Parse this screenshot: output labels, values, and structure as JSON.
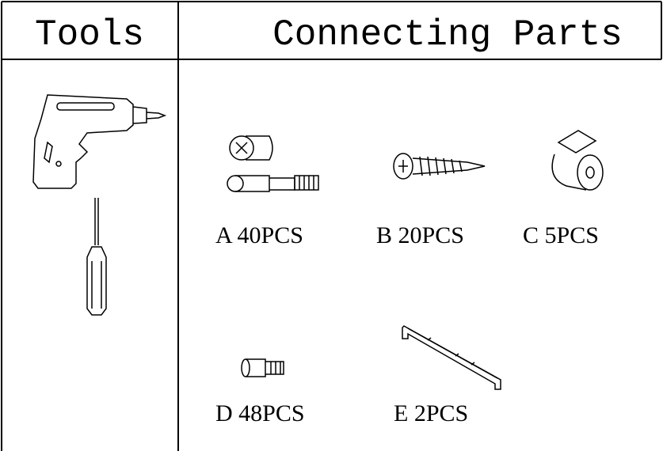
{
  "header": {
    "tools": "Tools",
    "parts": "Connecting Parts"
  },
  "parts": [
    {
      "label": "A 40PCS"
    },
    {
      "label": "B 20PCS"
    },
    {
      "label": "C 5PCS"
    },
    {
      "label": "D 48PCS"
    },
    {
      "label": "E 2PCS"
    }
  ]
}
